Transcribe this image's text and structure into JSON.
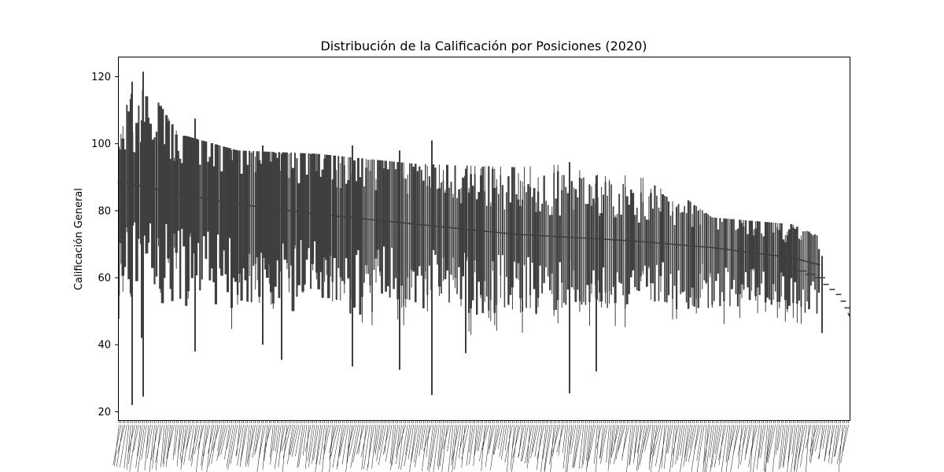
{
  "chart_data": {
    "type": "violin",
    "title": "Distribución de la Calificación por Posiciones (2020)",
    "xlabel": "",
    "ylabel": "Calificación General",
    "ylim": [
      17.5,
      126
    ],
    "yticks": [
      20,
      40,
      60,
      80,
      100,
      120
    ],
    "grid": false,
    "legend": "none",
    "color": "#3f3f3f",
    "categories_count": 370,
    "note_categories": "x tick labels are hundreds of overlapping, rotated position labels and are illegible; trend values are read from the median line",
    "trend": [
      {
        "idx": 0,
        "x": 152,
        "y": 88.5,
        "min": 22,
        "max": 105
      },
      {
        "idx": 10,
        "x": 175,
        "y": 87.5,
        "min": 25,
        "max": 121.5
      },
      {
        "idx": 30,
        "x": 230,
        "y": 85,
        "min": 38,
        "max": 103
      },
      {
        "idx": 60,
        "x": 300,
        "y": 82,
        "min": 40,
        "max": 98
      },
      {
        "idx": 100,
        "x": 400,
        "y": 79,
        "min": 35.5,
        "max": 97
      },
      {
        "idx": 150,
        "x": 500,
        "y": 76,
        "min": 33,
        "max": 94
      },
      {
        "idx": 200,
        "x": 600,
        "y": 73,
        "min": 37.5,
        "max": 93
      },
      {
        "idx": 260,
        "x": 725,
        "y": 71,
        "min": 25,
        "max": 95
      },
      {
        "idx": 300,
        "x": 800,
        "y": 69,
        "min": 46,
        "max": 78
      },
      {
        "idx": 340,
        "x": 900,
        "y": 66,
        "min": 47,
        "max": 76
      },
      {
        "idx": 360,
        "x": 1000,
        "y": 63,
        "min": 44,
        "max": 71
      },
      {
        "idx": 369,
        "x": 1080,
        "y": 49,
        "min": 48.5,
        "max": 51
      }
    ],
    "outliers": [
      {
        "x": 168,
        "min": 22,
        "max": 118.5
      },
      {
        "x": 182,
        "min": 24.5,
        "max": 121.5
      },
      {
        "x": 180,
        "min": 42,
        "max": 107
      },
      {
        "x": 248,
        "min": 38,
        "max": 107.5
      },
      {
        "x": 334,
        "min": 40,
        "max": 99.5
      },
      {
        "x": 358,
        "min": 35.5,
        "max": 97
      },
      {
        "x": 448,
        "min": 33.5,
        "max": 99.5
      },
      {
        "x": 508,
        "min": 32.5,
        "max": 98
      },
      {
        "x": 549,
        "min": 25,
        "max": 101
      },
      {
        "x": 592,
        "min": 37.5,
        "max": 92.5
      },
      {
        "x": 724,
        "min": 25.5,
        "max": 94.5
      },
      {
        "x": 758,
        "min": 32,
        "max": 90.5
      },
      {
        "x": 1045,
        "min": 43.5,
        "max": 66.5
      }
    ],
    "tail_steps": [
      {
        "x": 1005,
        "y": 63
      },
      {
        "x": 1018,
        "y": 62
      },
      {
        "x": 1030,
        "y": 61
      },
      {
        "x": 1042,
        "y": 60
      },
      {
        "x": 1050,
        "y": 58
      },
      {
        "x": 1058,
        "y": 56.5
      },
      {
        "x": 1066,
        "y": 55
      },
      {
        "x": 1072,
        "y": 53
      },
      {
        "x": 1077,
        "y": 51
      }
    ]
  }
}
